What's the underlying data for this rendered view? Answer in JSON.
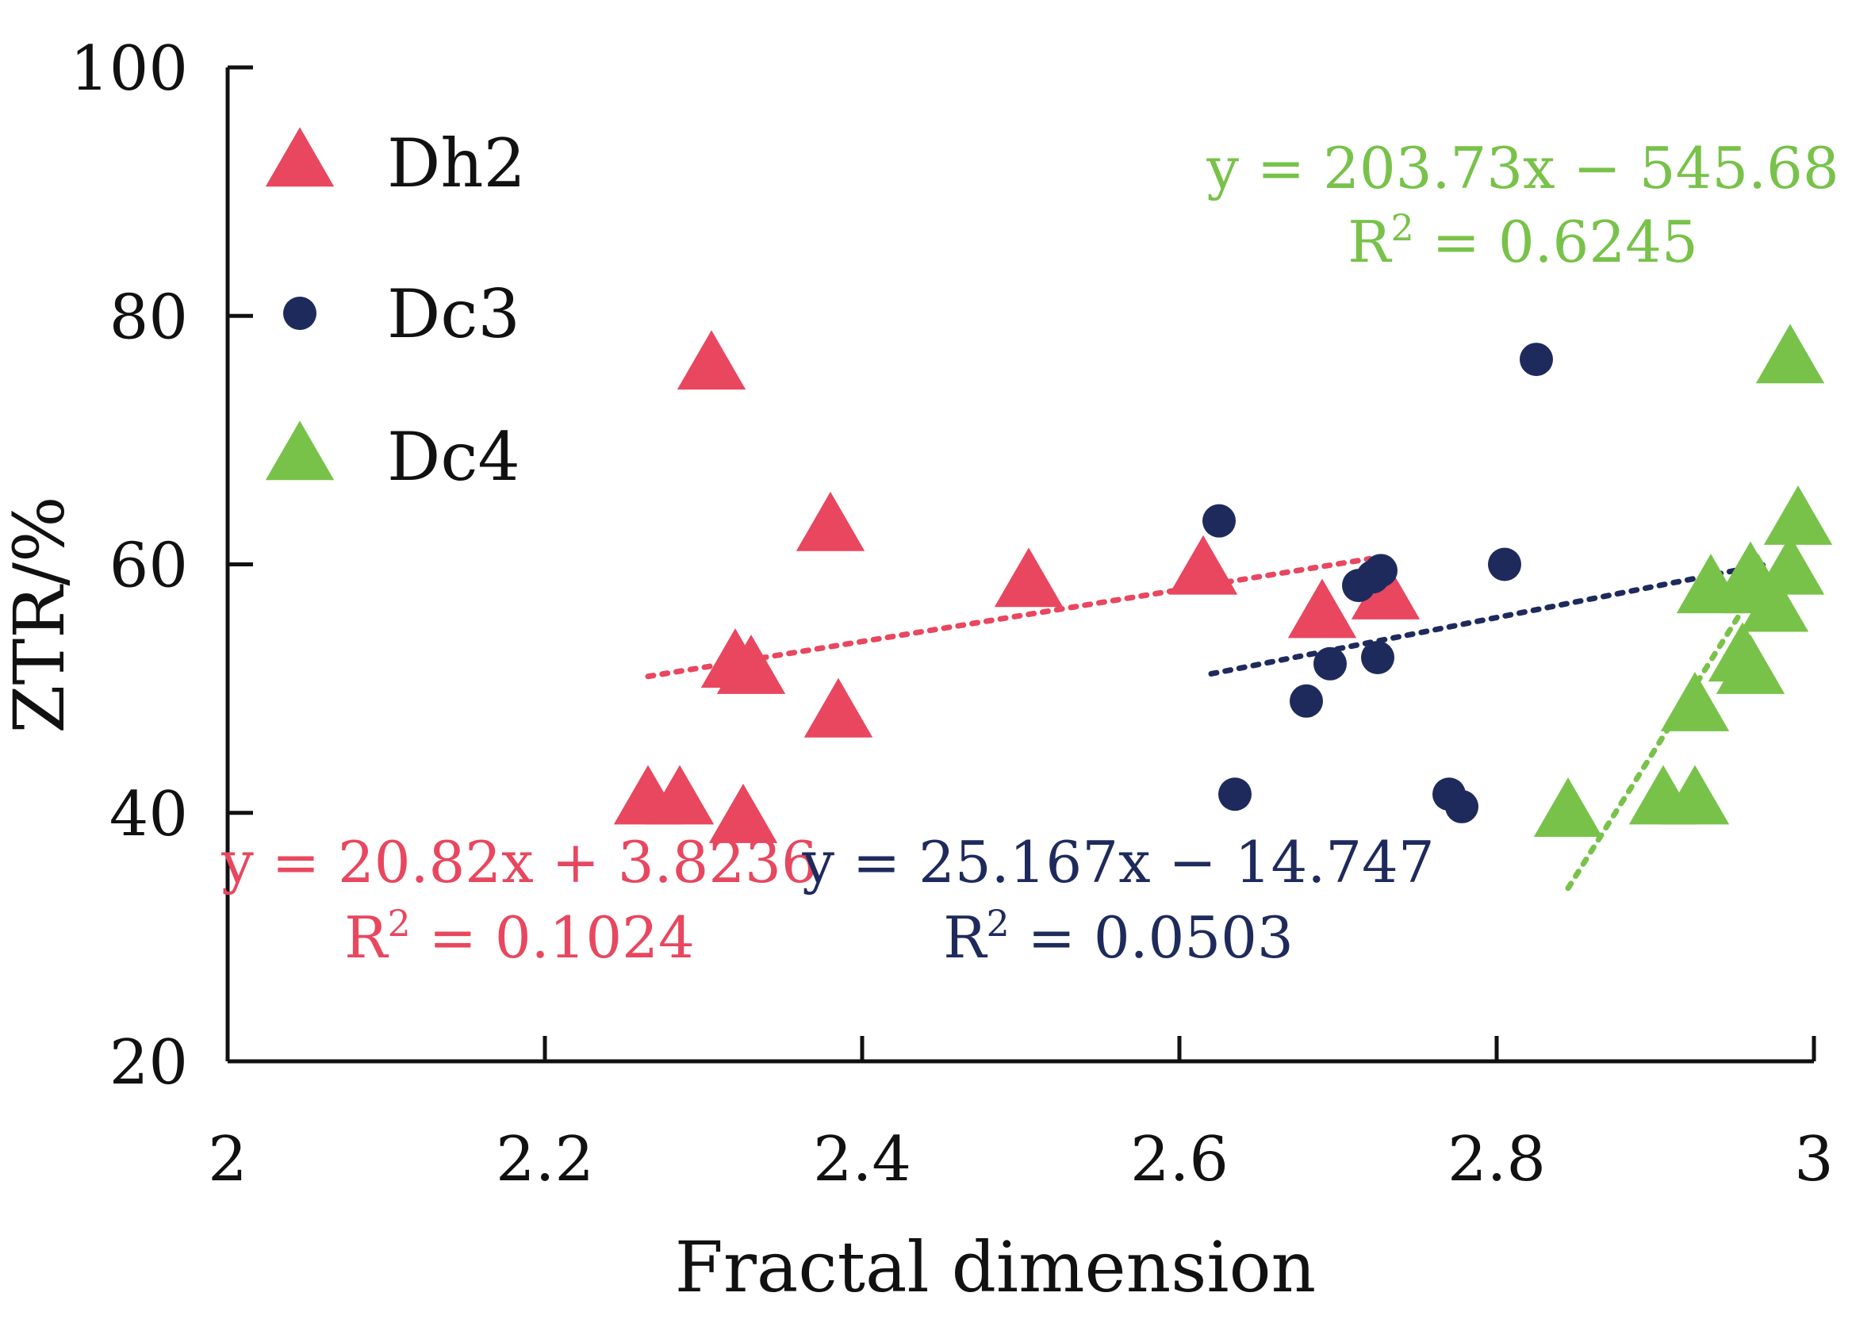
{
  "chart_data": {
    "type": "scatter",
    "title": "",
    "xlabel": "Fractal dimension",
    "ylabel": "ZTR/%",
    "xlim": [
      2,
      3
    ],
    "ylim": [
      20,
      100
    ],
    "xticks": [
      2,
      2.2,
      2.4,
      2.6,
      2.8,
      3
    ],
    "xtick_labels": [
      "2",
      "2.2",
      "2.4",
      "2.6",
      "2.8",
      "3"
    ],
    "yticks": [
      20,
      40,
      60,
      80,
      100
    ],
    "ytick_labels": [
      "20",
      "40",
      "60",
      "80",
      "100"
    ],
    "grid": false,
    "legend_position": "top-left",
    "series": [
      {
        "name": "Dh2",
        "marker": "triangle",
        "color": "#e8475f",
        "points": [
          [
            2.265,
            41.0
          ],
          [
            2.285,
            41.0
          ],
          [
            2.305,
            76.0
          ],
          [
            2.32,
            52.0
          ],
          [
            2.33,
            51.5
          ],
          [
            2.325,
            39.5
          ],
          [
            2.38,
            63.0
          ],
          [
            2.385,
            48.0
          ],
          [
            2.505,
            58.5
          ],
          [
            2.615,
            59.5
          ],
          [
            2.69,
            56.0
          ],
          [
            2.73,
            57.5
          ]
        ],
        "trendline": {
          "x_range": [
            2.265,
            2.72
          ],
          "label_eq": "y = 20.82x + 3.8236",
          "label_r2_prefix": "R",
          "label_r2_sup": "2",
          "label_r2_value": " = 0.1024"
        }
      },
      {
        "name": "Dc3",
        "marker": "circle",
        "color": "#1f2a5c",
        "points": [
          [
            2.625,
            63.5
          ],
          [
            2.635,
            41.5
          ],
          [
            2.68,
            49.0
          ],
          [
            2.695,
            52.0
          ],
          [
            2.713,
            58.3
          ],
          [
            2.722,
            59.0
          ],
          [
            2.727,
            59.5
          ],
          [
            2.725,
            52.5
          ],
          [
            2.77,
            41.5
          ],
          [
            2.778,
            40.5
          ],
          [
            2.805,
            60.0
          ],
          [
            2.825,
            76.5
          ],
          [
            2.97,
            57.0
          ]
        ],
        "trendline": {
          "x_range": [
            2.62,
            2.97
          ],
          "label_eq": "y = 25.167x − 14.747",
          "label_r2_prefix": "R",
          "label_r2_sup": "2",
          "label_r2_value": " = 0.0503"
        }
      },
      {
        "name": "Dc4",
        "marker": "triangle",
        "color": "#78c24a",
        "points": [
          [
            2.845,
            40.0
          ],
          [
            2.905,
            41.0
          ],
          [
            2.925,
            41.0
          ],
          [
            2.925,
            48.5
          ],
          [
            2.935,
            58.0
          ],
          [
            2.955,
            52.5
          ],
          [
            2.96,
            51.5
          ],
          [
            2.96,
            59.0
          ],
          [
            2.965,
            58.0
          ],
          [
            2.975,
            56.5
          ],
          [
            2.985,
            59.5
          ],
          [
            2.985,
            76.5
          ],
          [
            2.99,
            63.5
          ]
        ],
        "trendline": {
          "x_range": [
            2.845,
            2.965
          ],
          "label_eq": "y = 203.73x − 545.68",
          "label_r2_prefix": "R",
          "label_r2_sup": "2",
          "label_r2_value": " = 0.6245"
        }
      }
    ]
  }
}
